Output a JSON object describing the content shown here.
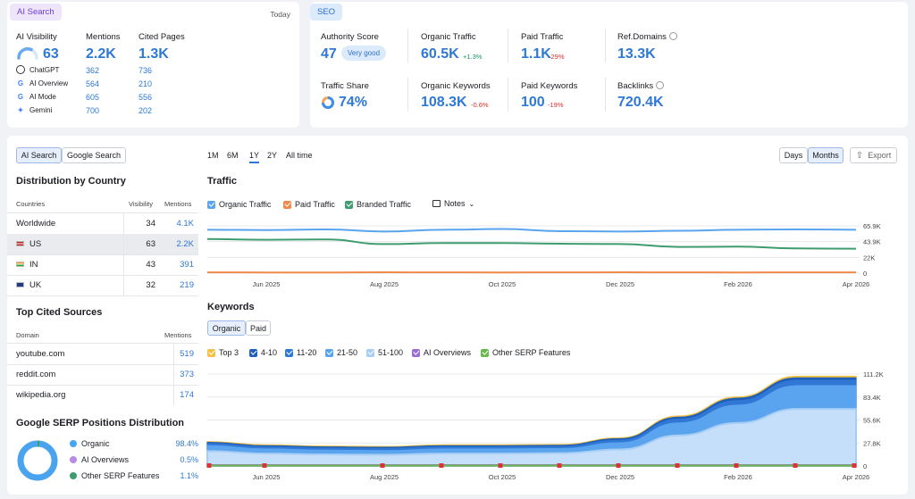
{
  "ai": {
    "tab": "AI Search",
    "period": "Today",
    "visibility_label": "AI Visibility",
    "visibility_value": "63",
    "visibility_gauge": 0.63,
    "mentions_label": "Mentions",
    "mentions_value": "2.2K",
    "cited_label": "Cited Pages",
    "cited_value": "1.3K",
    "platforms": [
      {
        "name": "ChatGPT",
        "mentions": "362",
        "cited": "736",
        "icon": "chatgpt-icon"
      },
      {
        "name": "AI Overview",
        "mentions": "564",
        "cited": "210",
        "icon": "google-icon"
      },
      {
        "name": "AI Mode",
        "mentions": "605",
        "cited": "556",
        "icon": "google-icon"
      },
      {
        "name": "Gemini",
        "mentions": "700",
        "cited": "202",
        "icon": "gemini-icon"
      }
    ]
  },
  "seo": {
    "tab": "SEO",
    "authority_label": "Authority Score",
    "authority_value": "47",
    "authority_badge": "Very good",
    "organic_traffic_label": "Organic Traffic",
    "organic_traffic_value": "60.5K",
    "organic_traffic_change": "+1.3%",
    "paid_traffic_label": "Paid Traffic",
    "paid_traffic_value": "1.1K",
    "paid_traffic_change": "-29%",
    "ref_domains_label": "Ref.Domains",
    "ref_domains_value": "13.3K",
    "traffic_share_label": "Traffic Share",
    "traffic_share_value": "74%",
    "traffic_share_fraction": 0.74,
    "organic_keywords_label": "Organic Keywords",
    "organic_keywords_value": "108.3K",
    "organic_keywords_change": "-0.6%",
    "paid_keywords_label": "Paid Keywords",
    "paid_keywords_value": "100",
    "paid_keywords_change": "-19%",
    "backlinks_label": "Backlinks",
    "backlinks_value": "720.4K"
  },
  "left": {
    "toggle": [
      "AI Search",
      "Google Search"
    ],
    "country_title": "Distribution by Country",
    "country_headers": [
      "Countries",
      "Visibility",
      "Mentions"
    ],
    "countries": [
      {
        "name": "Worldwide",
        "visibility": "34",
        "mentions": "4.1K",
        "flag": "none"
      },
      {
        "name": "US",
        "visibility": "63",
        "mentions": "2.2K",
        "flag": "us-flag-icon"
      },
      {
        "name": "IN",
        "visibility": "43",
        "mentions": "391",
        "flag": "in-flag-icon"
      },
      {
        "name": "UK",
        "visibility": "32",
        "mentions": "219",
        "flag": "uk-flag-icon"
      }
    ],
    "sources_title": "Top Cited Sources",
    "sources_headers": [
      "Domain",
      "Mentions"
    ],
    "sources": [
      {
        "domain": "youtube.com",
        "mentions": "519"
      },
      {
        "domain": "reddit.com",
        "mentions": "373"
      },
      {
        "domain": "wikipedia.org",
        "mentions": "174"
      }
    ],
    "serp_title": "Google SERP Positions Distribution",
    "serp": [
      {
        "name": "Organic",
        "value": "98.4%",
        "color": "#4aa3ef",
        "fraction": 0.984
      },
      {
        "name": "AI Overviews",
        "value": "0.5%",
        "color": "#b78be8",
        "fraction": 0.005
      },
      {
        "name": "Other SERP Features",
        "value": "1.1%",
        "color": "#3e9c6e",
        "fraction": 0.011
      }
    ]
  },
  "controls": {
    "ranges": [
      "1M",
      "6M",
      "1Y",
      "2Y",
      "All time"
    ],
    "selected_range": "1Y",
    "granularity": [
      "Days",
      "Months"
    ],
    "selected_granularity": "Months",
    "export": "Export"
  },
  "traffic": {
    "title": "Traffic",
    "legend": [
      {
        "name": "Organic Traffic",
        "color": "#5aa4ef"
      },
      {
        "name": "Paid Traffic",
        "color": "#f08a4b"
      },
      {
        "name": "Branded Traffic",
        "color": "#3e9c6e"
      }
    ],
    "notes": "Notes"
  },
  "keywords": {
    "title": "Keywords",
    "toggle": [
      "Organic",
      "Paid"
    ],
    "legend": [
      {
        "name": "Top 3",
        "color": "#f3c244"
      },
      {
        "name": "4-10",
        "color": "#1f5fb8"
      },
      {
        "name": "11-20",
        "color": "#3178d6"
      },
      {
        "name": "21-50",
        "color": "#5aa4ef"
      },
      {
        "name": "51-100",
        "color": "#a6cef5"
      },
      {
        "name": "AI Overviews",
        "color": "#9a6ed8"
      },
      {
        "name": "Other SERP Features",
        "color": "#6cb94b"
      }
    ]
  },
  "chart_data": [
    {
      "type": "line",
      "title": "Traffic",
      "x": [
        "May 2025",
        "Jun 2025",
        "Jul 2025",
        "Aug 2025",
        "Sep 2025",
        "Oct 2025",
        "Nov 2025",
        "Dec 2025",
        "Jan 2026",
        "Feb 2026",
        "Mar 2026",
        "Apr 2026"
      ],
      "x_tick_labels": [
        "Jun 2025",
        "Aug 2025",
        "Oct 2025",
        "Dec 2025",
        "Feb 2026",
        "Apr 2026"
      ],
      "y_tick_labels": [
        "0",
        "22K",
        "43.9K",
        "65.9K"
      ],
      "ylim": [
        0,
        65900
      ],
      "series": [
        {
          "name": "Organic Traffic",
          "color": "#5aa4ef",
          "values": [
            60500,
            60000,
            61000,
            58000,
            60500,
            61500,
            58500,
            58000,
            59000,
            60500,
            61000,
            60500
          ]
        },
        {
          "name": "Branded Traffic",
          "color": "#3e9c6e",
          "values": [
            47500,
            46500,
            47000,
            40500,
            42000,
            42000,
            41000,
            40500,
            36500,
            37000,
            34500,
            34000
          ]
        },
        {
          "name": "Paid Traffic",
          "color": "#f08a4b",
          "values": [
            1100,
            1000,
            900,
            1200,
            1100,
            1000,
            1100,
            1200,
            1100,
            1000,
            1100,
            1100
          ]
        }
      ],
      "grid": true
    },
    {
      "type": "area",
      "title": "Keywords",
      "x": [
        "May 2025",
        "Jun 2025",
        "Jul 2025",
        "Aug 2025",
        "Sep 2025",
        "Oct 2025",
        "Nov 2025",
        "Dec 2025",
        "Jan 2026",
        "Feb 2026",
        "Mar 2026",
        "Apr 2026"
      ],
      "x_tick_labels": [
        "Jun 2025",
        "Aug 2025",
        "Oct 2025",
        "Dec 2025",
        "Feb 2026",
        "Apr 2026"
      ],
      "y_tick_labels": [
        "0",
        "27.8K",
        "55.6K",
        "83.4K",
        "111.2K"
      ],
      "ylim": [
        0,
        111200
      ],
      "series": [
        {
          "name": "Top 3",
          "color": "#f3c244",
          "values": [
            29500,
            25500,
            24000,
            23500,
            25500,
            25500,
            26000,
            34000,
            60500,
            83500,
            108500,
            108500
          ]
        },
        {
          "name": "4-10",
          "color": "#1f5fb8",
          "values": [
            28500,
            24500,
            23000,
            22500,
            24500,
            24500,
            25000,
            33000,
            59000,
            82000,
            106500,
            106500
          ]
        },
        {
          "name": "11-20",
          "color": "#3178d6",
          "values": [
            27000,
            23000,
            21500,
            21000,
            23000,
            23000,
            23500,
            31000,
            56500,
            79000,
            103500,
            103500
          ]
        },
        {
          "name": "21-50",
          "color": "#5aa4ef",
          "values": [
            24500,
            20500,
            19000,
            18500,
            20500,
            20500,
            21000,
            28000,
            52000,
            73500,
            97000,
            97000
          ]
        },
        {
          "name": "51-100",
          "color": "#a6cef5",
          "values": [
            18000,
            15000,
            14000,
            13500,
            15000,
            15000,
            15500,
            20000,
            37000,
            52000,
            69000,
            69000
          ]
        },
        {
          "name": "AI Overviews",
          "color": "#9a6ed8",
          "values": [
            1500,
            1500,
            1500,
            1500,
            1500,
            1500,
            1500,
            1500,
            1500,
            1500,
            1500,
            1500
          ]
        },
        {
          "name": "Other SERP Features",
          "color": "#6cb94b",
          "values": [
            1000,
            1000,
            1000,
            1000,
            1000,
            1000,
            1000,
            1000,
            1000,
            1000,
            1000,
            1000
          ]
        }
      ],
      "grid": true
    }
  ]
}
